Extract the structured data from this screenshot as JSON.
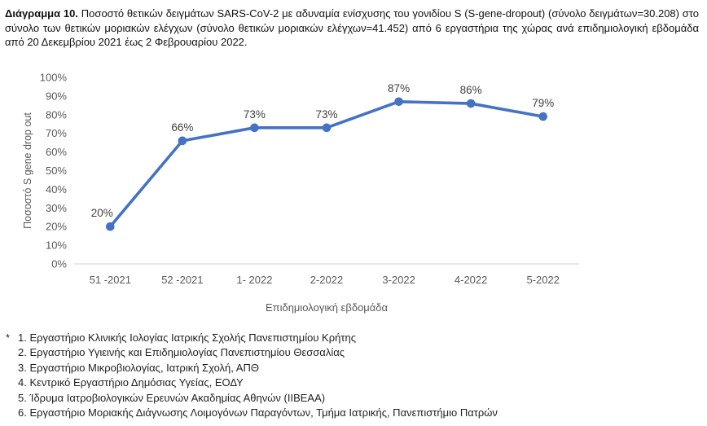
{
  "title": {
    "label": "Διάγραμμα 10.",
    "text": "Ποσοστό θετικών δειγμάτων SARS-CoV-2 με αδυναμία ενίσχυσης του γονιδίου S (S-gene-dropout) (σύνολο δειγμάτων=30.208) στο σύνολο των θετικών μοριακών ελέγχων (σύνολο θετικών μοριακών ελέγχων=41.452) από 6 εργαστήρια της χώρας ανά επιδημιολογική εβδομάδα από 20 Δεκεμβρίου 2021 έως 2 Φεβρουαρίου 2022."
  },
  "chart_data": {
    "type": "line",
    "categories": [
      "51 -2021",
      "52 -2021",
      "1- 2022",
      "2-2022",
      "3-2022",
      "4-2022",
      "5-2022"
    ],
    "values": [
      20,
      66,
      73,
      73,
      87,
      86,
      79
    ],
    "data_labels": [
      "20%",
      "66%",
      "73%",
      "73%",
      "87%",
      "86%",
      "79%"
    ],
    "title": "",
    "xlabel": "Επιδημιολογική εβδομάδα",
    "ylabel": "Ποσοστό S gene drop out",
    "ylim": [
      0,
      100
    ],
    "ytick_step": 10,
    "ytick_labels": [
      "0%",
      "10%",
      "20%",
      "30%",
      "40%",
      "50%",
      "60%",
      "70%",
      "80%",
      "90%",
      "100%"
    ],
    "grid": false,
    "legend": "none",
    "series_color": "#4472C4",
    "axis_line_color": "#D9D9D9",
    "axis_text_color": "#595959",
    "data_label_color": "#404040"
  },
  "footnotes": {
    "marker": "*",
    "items": [
      "1. Εργαστήριο Κλινικής Ιολογίας Ιατρικής Σχολής Πανεπιστημίου Κρήτης",
      "2. Εργαστήριο Υγιεινής και Επιδημιολογίας Πανεπιστημίου Θεσσαλίας",
      "3. Εργαστήριο Μικροβιολογίας, Ιατρική Σχολή, ΑΠΘ",
      "4. Κεντρικό Εργαστήριο Δημόσιας Υγείας, ΕΟΔΥ",
      "5. Ίδρυμα Ιατροβιολογικών Ερευνών Ακαδημίας Αθηνών (ΙΙΒΕΑΑ)",
      "6. Εργαστήριο Μοριακής Διάγνωσης Λοιμογόνων Παραγόντων, Τμήμα Ιατρικής, Πανεπιστήμιο Πατρών"
    ]
  }
}
